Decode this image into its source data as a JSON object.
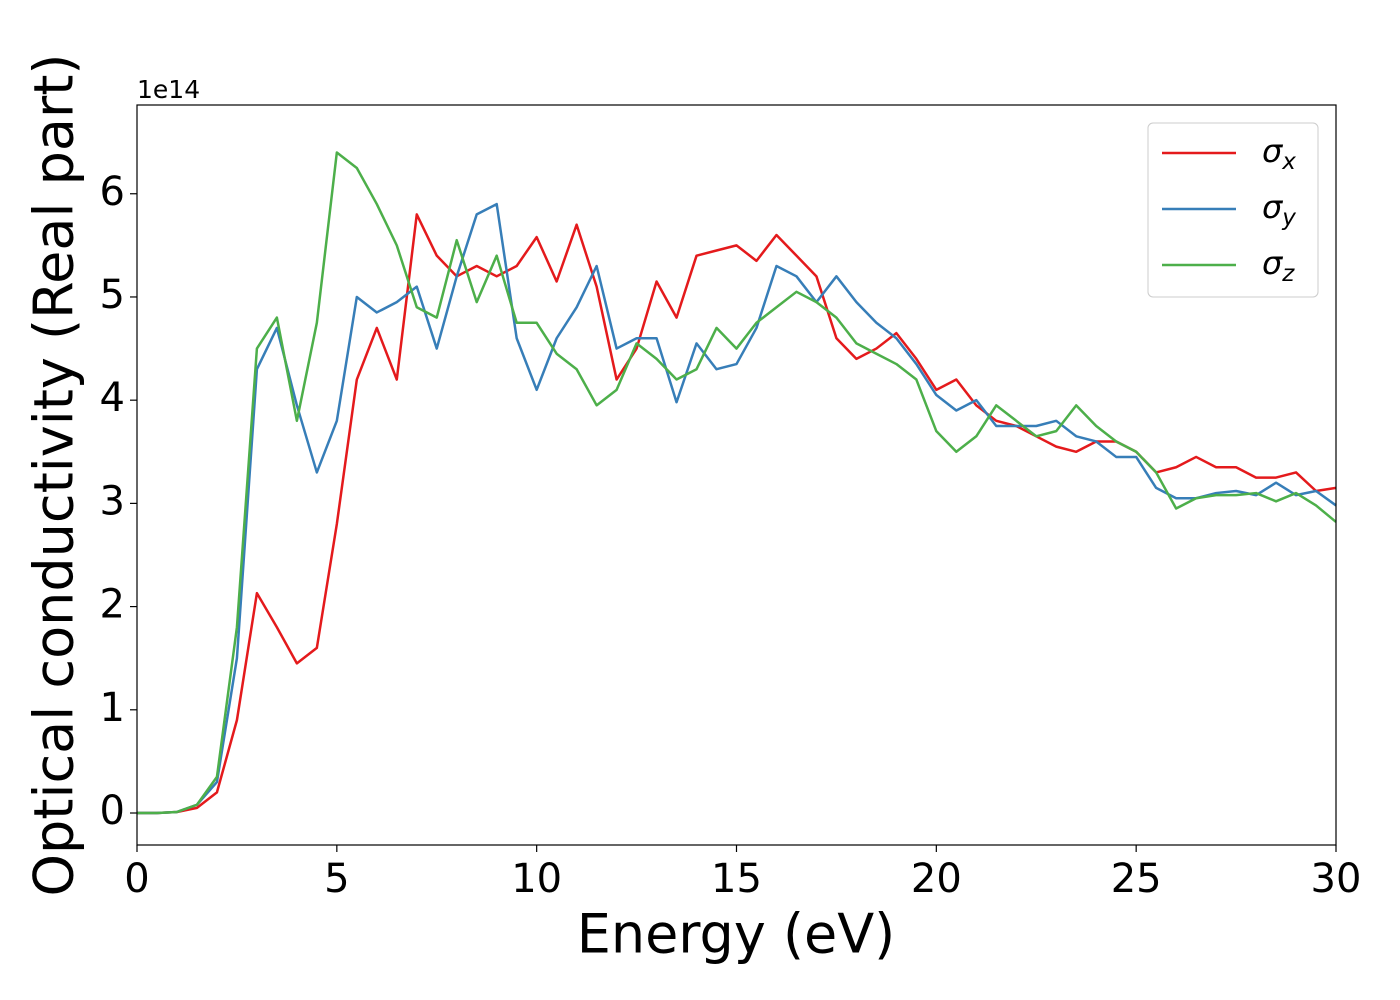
{
  "chart_data": {
    "type": "line",
    "xlabel": "Energy (eV)",
    "ylabel": "Optical conductivity (Real part)",
    "y_offset_label": "1e14",
    "x": [
      0,
      0.5,
      1,
      1.5,
      2,
      2.5,
      3,
      3.5,
      4,
      4.5,
      5,
      5.5,
      6,
      6.5,
      7,
      7.5,
      8,
      8.5,
      9,
      9.5,
      10,
      10.5,
      11,
      11.5,
      12,
      12.5,
      13,
      13.5,
      14,
      14.5,
      15,
      15.5,
      16,
      16.5,
      17,
      17.5,
      18,
      18.5,
      19,
      19.5,
      20,
      20.5,
      21,
      21.5,
      22,
      22.5,
      23,
      23.5,
      24,
      24.5,
      25,
      25.5,
      26,
      26.5,
      27,
      27.5,
      28,
      28.5,
      29,
      29.5,
      30
    ],
    "series": [
      {
        "name": "σx",
        "color": "#e41a1c",
        "values": [
          0,
          0,
          0.01,
          0.05,
          0.2,
          0.9,
          2.13,
          1.8,
          1.45,
          1.6,
          2.8,
          4.2,
          4.7,
          4.2,
          5.8,
          5.4,
          5.2,
          5.3,
          5.2,
          5.3,
          5.58,
          5.15,
          5.7,
          5.1,
          4.2,
          4.5,
          5.15,
          4.8,
          5.4,
          5.45,
          5.5,
          5.35,
          5.6,
          5.4,
          5.2,
          4.6,
          4.4,
          4.5,
          4.65,
          4.4,
          4.1,
          4.2,
          3.95,
          3.8,
          3.75,
          3.65,
          3.55,
          3.5,
          3.6,
          3.6,
          3.5,
          3.3,
          3.35,
          3.45,
          3.35,
          3.35,
          3.25,
          3.25,
          3.3,
          3.12,
          3.15
        ]
      },
      {
        "name": "σy",
        "color": "#377eb8",
        "values": [
          0,
          0,
          0.01,
          0.08,
          0.3,
          1.5,
          4.3,
          4.7,
          3.95,
          3.3,
          3.8,
          5.0,
          4.85,
          4.95,
          5.1,
          4.5,
          5.2,
          5.8,
          5.9,
          4.6,
          4.1,
          4.6,
          4.9,
          5.3,
          4.5,
          4.6,
          4.6,
          3.98,
          4.55,
          4.3,
          4.35,
          4.7,
          5.3,
          5.2,
          4.95,
          5.2,
          4.95,
          4.75,
          4.6,
          4.35,
          4.05,
          3.9,
          4.0,
          3.75,
          3.75,
          3.75,
          3.8,
          3.65,
          3.6,
          3.45,
          3.45,
          3.15,
          3.05,
          3.05,
          3.1,
          3.12,
          3.08,
          3.2,
          3.08,
          3.12,
          2.98
        ]
      },
      {
        "name": "σz",
        "color": "#4daf4a",
        "values": [
          0,
          0,
          0.01,
          0.08,
          0.35,
          1.8,
          4.5,
          4.8,
          3.8,
          4.75,
          6.4,
          6.25,
          5.9,
          5.5,
          4.9,
          4.8,
          5.55,
          4.95,
          5.4,
          4.75,
          4.75,
          4.45,
          4.3,
          3.95,
          4.1,
          4.55,
          4.4,
          4.2,
          4.3,
          4.7,
          4.5,
          4.75,
          4.9,
          5.05,
          4.95,
          4.8,
          4.55,
          4.45,
          4.35,
          4.2,
          3.7,
          3.5,
          3.65,
          3.95,
          3.8,
          3.65,
          3.7,
          3.95,
          3.75,
          3.6,
          3.5,
          3.3,
          2.95,
          3.05,
          3.08,
          3.08,
          3.1,
          3.02,
          3.1,
          2.98,
          2.82
        ]
      }
    ],
    "xlim": [
      0,
      30
    ],
    "xticks": [
      0,
      5,
      10,
      15,
      20,
      25,
      30
    ],
    "ylim": [
      -0.31,
      6.86
    ],
    "yticks": [
      0,
      1,
      2,
      3,
      4,
      5,
      6
    ],
    "grid": false,
    "legend": "upper right"
  }
}
